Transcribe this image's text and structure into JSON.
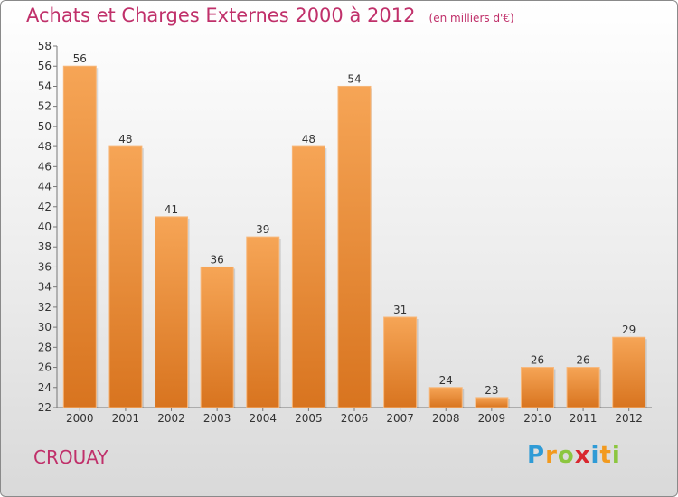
{
  "chart_data": {
    "type": "bar",
    "title": "Achats et Charges Externes 2000 à 2012",
    "subtitle": "(en milliers d'€)",
    "categories": [
      "2000",
      "2001",
      "2002",
      "2003",
      "2004",
      "2005",
      "2006",
      "2007",
      "2008",
      "2009",
      "2010",
      "2011",
      "2012"
    ],
    "values": [
      56,
      48,
      41,
      36,
      39,
      48,
      54,
      31,
      24,
      23,
      26,
      26,
      29
    ],
    "ylim": [
      22,
      58
    ],
    "yticks": [
      22,
      24,
      26,
      28,
      30,
      32,
      34,
      36,
      38,
      40,
      42,
      44,
      46,
      48,
      50,
      52,
      54,
      56,
      58
    ],
    "grid": false,
    "bar_color": "#f0903a"
  },
  "commune": "CROUAY",
  "logo": {
    "letters": [
      "P",
      "r",
      "o",
      "x",
      "i",
      "t",
      "i"
    ],
    "colors": [
      "#2f9bd6",
      "#f29a1f",
      "#8cc63f",
      "#d9272e",
      "#2f9bd6",
      "#f29a1f",
      "#8cc63f"
    ]
  }
}
